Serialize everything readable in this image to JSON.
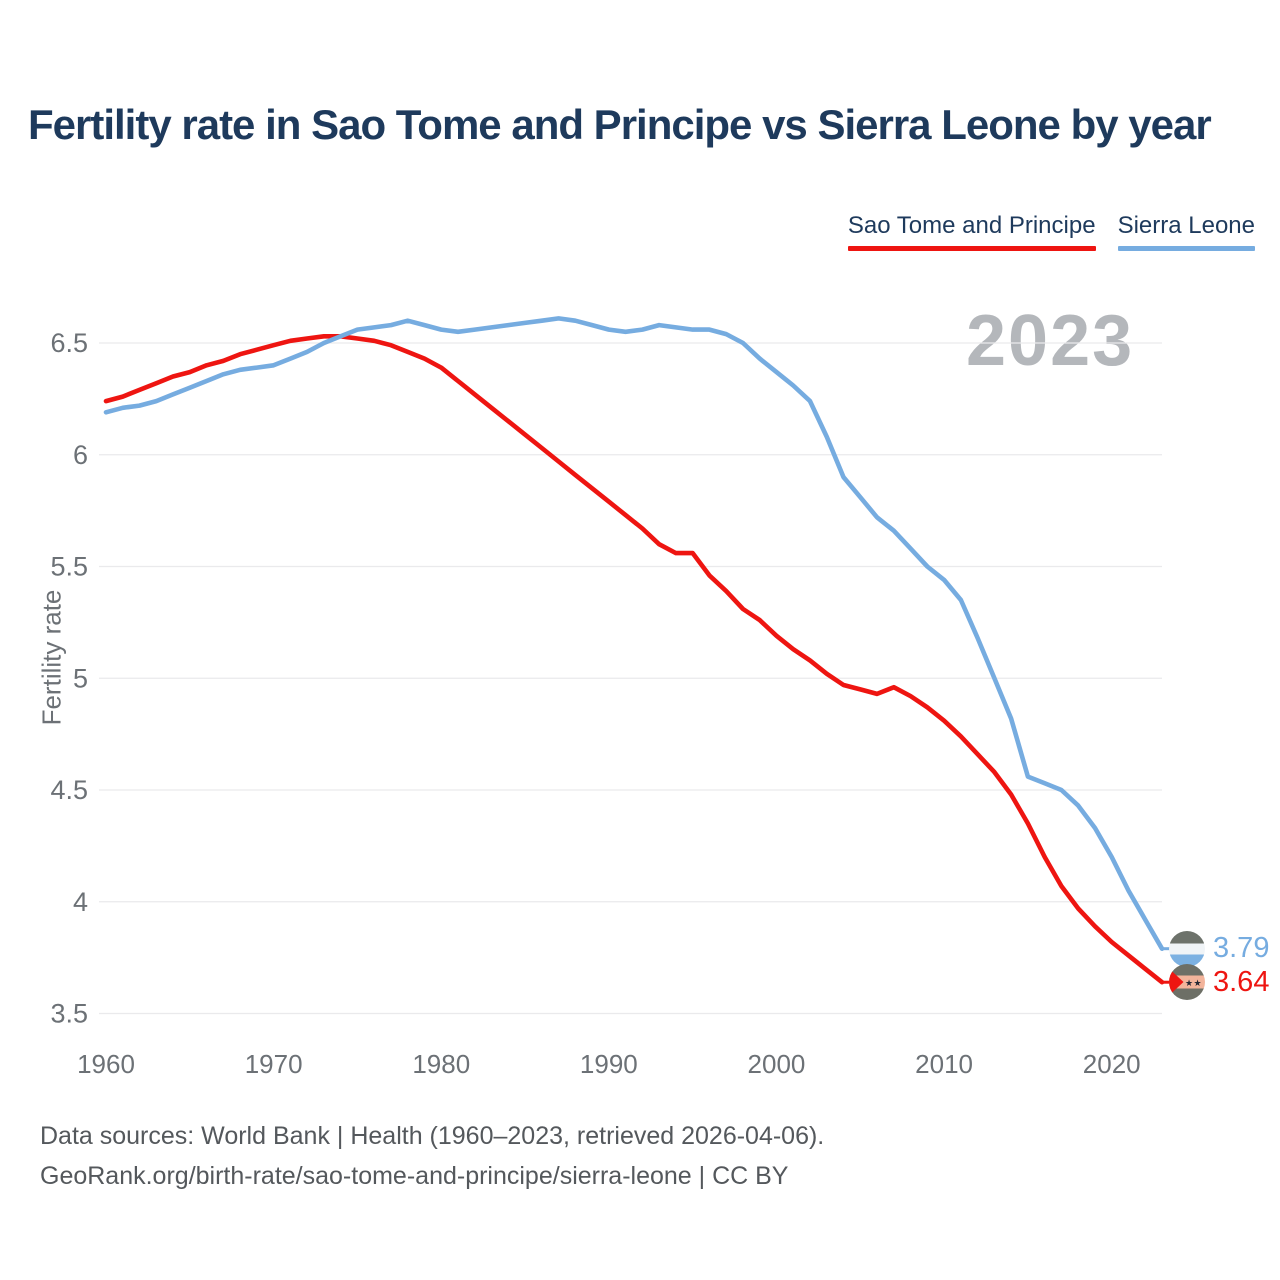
{
  "header": {
    "title": "Fertility rate in Sao Tome and Principe vs Sierra Leone by year"
  },
  "legend": [
    {
      "label": "Sao Tome and Principe",
      "color": "#ee1511"
    },
    {
      "label": "Sierra Leone",
      "color": "#76ace0"
    }
  ],
  "chart_data": {
    "type": "line",
    "title": "Fertility rate in Sao Tome and Principe vs Sierra Leone by year",
    "ylabel": "Fertility rate",
    "xlabel": "",
    "watermark": "2023",
    "grid": "horizontal",
    "legend_position": "top-right",
    "ylim": [
      3.4,
      6.72
    ],
    "xlim": [
      1960,
      2023
    ],
    "y_ticks": [
      6.5,
      6,
      5.5,
      5,
      4.5,
      4,
      3.5
    ],
    "x_ticks": [
      1960,
      1970,
      1980,
      1990,
      2000,
      2010,
      2020
    ],
    "x": [
      1960,
      1961,
      1962,
      1963,
      1964,
      1965,
      1966,
      1967,
      1968,
      1969,
      1970,
      1971,
      1972,
      1973,
      1974,
      1975,
      1976,
      1977,
      1978,
      1979,
      1980,
      1981,
      1982,
      1983,
      1984,
      1985,
      1986,
      1987,
      1988,
      1989,
      1990,
      1991,
      1992,
      1993,
      1994,
      1995,
      1996,
      1997,
      1998,
      1999,
      2000,
      2001,
      2002,
      2003,
      2004,
      2005,
      2006,
      2007,
      2008,
      2009,
      2010,
      2011,
      2012,
      2013,
      2014,
      2015,
      2016,
      2017,
      2018,
      2019,
      2020,
      2021,
      2022,
      2023
    ],
    "series": [
      {
        "name": "Sao Tome and Principe",
        "color": "#ee1511",
        "end_label": "3.64",
        "values": [
          6.24,
          6.26,
          6.29,
          6.32,
          6.35,
          6.37,
          6.4,
          6.42,
          6.45,
          6.47,
          6.49,
          6.51,
          6.52,
          6.53,
          6.53,
          6.52,
          6.51,
          6.49,
          6.46,
          6.43,
          6.39,
          6.33,
          6.27,
          6.21,
          6.15,
          6.09,
          6.03,
          5.97,
          5.91,
          5.85,
          5.79,
          5.73,
          5.67,
          5.6,
          5.56,
          5.56,
          5.46,
          5.39,
          5.31,
          5.26,
          5.19,
          5.13,
          5.08,
          5.02,
          4.97,
          4.95,
          4.93,
          4.96,
          4.92,
          4.87,
          4.81,
          4.74,
          4.66,
          4.58,
          4.48,
          4.35,
          4.2,
          4.07,
          3.97,
          3.89,
          3.82,
          3.76,
          3.7,
          3.64
        ]
      },
      {
        "name": "Sierra Leone",
        "color": "#76ace0",
        "end_label": "3.79",
        "values": [
          6.19,
          6.21,
          6.22,
          6.24,
          6.27,
          6.3,
          6.33,
          6.36,
          6.38,
          6.39,
          6.4,
          6.43,
          6.46,
          6.5,
          6.53,
          6.56,
          6.57,
          6.58,
          6.6,
          6.58,
          6.56,
          6.55,
          6.56,
          6.57,
          6.58,
          6.59,
          6.6,
          6.61,
          6.6,
          6.58,
          6.56,
          6.55,
          6.56,
          6.58,
          6.57,
          6.56,
          6.56,
          6.54,
          6.5,
          6.43,
          6.37,
          6.31,
          6.24,
          6.08,
          5.9,
          5.81,
          5.72,
          5.66,
          5.58,
          5.5,
          5.44,
          5.35,
          5.18,
          5.0,
          4.82,
          4.56,
          4.53,
          4.5,
          4.43,
          4.33,
          4.2,
          4.05,
          3.92,
          3.79
        ]
      }
    ]
  },
  "footer": {
    "line1": "Data sources: World Bank | Health (1960–2023, retrieved 2026-04-06).",
    "line2": "GeoRank.org/birth-rate/sao-tome-and-principe/sierra-leone | CC BY"
  }
}
